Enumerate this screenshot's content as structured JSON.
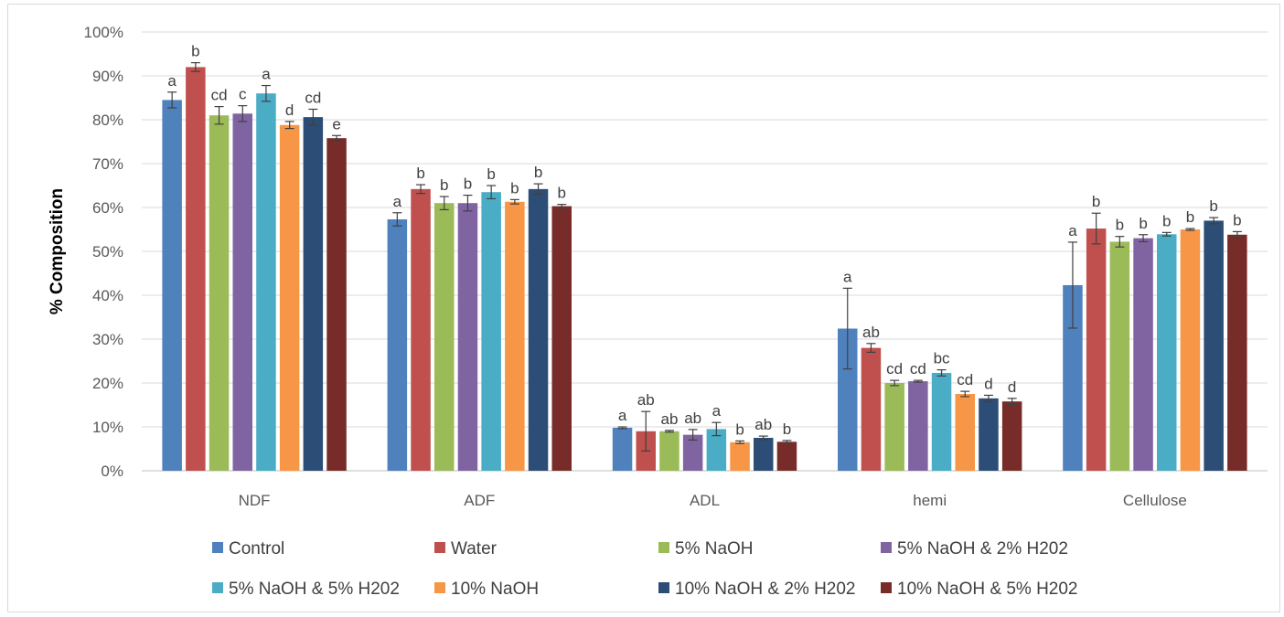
{
  "chart_data": {
    "type": "bar",
    "title": "",
    "xlabel": "",
    "ylabel": "% Composition",
    "ylim": [
      0,
      100
    ],
    "yticks": [
      "0%",
      "10%",
      "20%",
      "30%",
      "40%",
      "50%",
      "60%",
      "70%",
      "80%",
      "90%",
      "100%"
    ],
    "grid": true,
    "legend_position": "bottom",
    "categories": [
      "NDF",
      "ADF",
      "ADL",
      "hemi",
      "Cellulose"
    ],
    "series": [
      {
        "name": "Control",
        "color": "#4F81BD",
        "values": [
          84.5,
          57.3,
          9.8,
          32.4,
          42.3
        ],
        "errors": [
          1.8,
          1.5,
          0.2,
          9.2,
          9.8
        ],
        "letters": [
          "a",
          "a",
          "a",
          "a",
          "a"
        ]
      },
      {
        "name": "Water",
        "color": "#C0504D",
        "values": [
          92.0,
          64.2,
          9.0,
          28.0,
          55.2
        ],
        "errors": [
          1.0,
          1.0,
          4.5,
          1.0,
          3.5
        ],
        "letters": [
          "b",
          "b",
          "ab",
          "ab",
          "b"
        ]
      },
      {
        "name": "5% NaOH",
        "color": "#9BBB59",
        "values": [
          81.0,
          61.0,
          9.0,
          20.0,
          52.2
        ],
        "errors": [
          2.0,
          1.5,
          0.2,
          0.6,
          1.2
        ],
        "letters": [
          "cd",
          "b",
          "ab",
          "cd",
          "b"
        ]
      },
      {
        "name": "5% NaOH & 2% H202",
        "color": "#8064A2",
        "values": [
          81.4,
          61.0,
          8.2,
          20.4,
          53.0
        ],
        "errors": [
          1.8,
          1.8,
          1.2,
          0.2,
          0.8
        ],
        "letters": [
          "c",
          "b",
          "ab",
          "cd",
          "b"
        ]
      },
      {
        "name": "5% NaOH & 5% H202",
        "color": "#4BACC6",
        "values": [
          86.0,
          63.5,
          9.5,
          22.3,
          53.9
        ],
        "errors": [
          1.8,
          1.5,
          1.5,
          0.7,
          0.4
        ],
        "letters": [
          "a",
          "b",
          "a",
          "bc",
          "b"
        ]
      },
      {
        "name": "10% NaOH",
        "color": "#F79646",
        "values": [
          78.8,
          61.3,
          6.5,
          17.5,
          55.0
        ],
        "errors": [
          0.8,
          0.5,
          0.3,
          0.6,
          0.2
        ],
        "letters": [
          "d",
          "b",
          "b",
          "cd",
          "b"
        ]
      },
      {
        "name": "10% NaOH & 2% H202",
        "color": "#2C4D75",
        "values": [
          80.6,
          64.2,
          7.5,
          16.5,
          57.0
        ],
        "errors": [
          1.8,
          1.2,
          0.4,
          0.7,
          0.7
        ],
        "letters": [
          "cd",
          "b",
          "ab",
          "d",
          "b"
        ]
      },
      {
        "name": "10% NaOH & 5% H202",
        "color": "#772C2A",
        "values": [
          75.8,
          60.3,
          6.6,
          15.8,
          53.8
        ],
        "errors": [
          0.6,
          0.4,
          0.3,
          0.7,
          0.7
        ],
        "letters": [
          "e",
          "b",
          "b",
          "d",
          "b"
        ]
      }
    ]
  }
}
